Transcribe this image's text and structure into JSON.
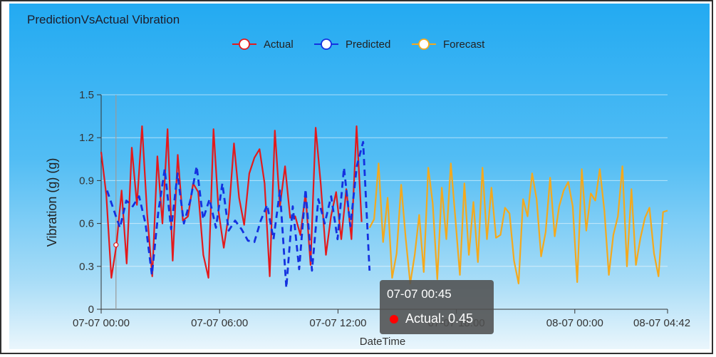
{
  "chart_data": {
    "type": "line",
    "title": "PredictionVsActual Vibration",
    "xlabel": "DateTime",
    "ylabel": "Vibration (g) (g)",
    "ylim": [
      0,
      1.5
    ],
    "y_ticks": [
      "0",
      "0.3",
      "0.6",
      "0.9",
      "1.2",
      "1.5"
    ],
    "x_tick_labels": [
      "07-07 00:00",
      "07-07 06:00",
      "07-07 12:00",
      "07-07 18:00",
      "08-07 00:00",
      "08-07 04:42"
    ],
    "x_range_hours": [
      0,
      28.7
    ],
    "grid": true,
    "legend_position": "top",
    "series": [
      {
        "name": "Actual",
        "color": "#e31a1c",
        "marker": "circle",
        "style": "solid",
        "values": [
          1.1,
          0.8,
          0.22,
          0.45,
          0.83,
          0.32,
          1.13,
          0.73,
          1.28,
          0.67,
          0.23,
          1.07,
          0.6,
          1.26,
          0.34,
          1.08,
          0.62,
          0.65,
          0.88,
          0.82,
          0.38,
          0.22,
          1.26,
          0.68,
          0.43,
          0.67,
          1.16,
          0.78,
          0.59,
          0.95,
          1.06,
          1.12,
          0.88,
          0.23,
          1.25,
          0.72,
          1.0,
          0.64,
          0.65,
          0.52,
          0.81,
          0.31,
          1.27,
          0.87,
          0.38,
          0.65,
          0.82,
          0.49,
          0.84,
          0.49,
          1.28,
          0.61
        ]
      },
      {
        "name": "Predicted",
        "color": "#1431e0",
        "marker": "circle",
        "style": "dashed",
        "values": [
          0.83,
          0.7,
          0.57,
          0.76,
          0.72,
          0.79,
          0.6,
          0.24,
          0.68,
          0.98,
          0.56,
          0.95,
          0.6,
          0.76,
          1.0,
          0.63,
          0.77,
          0.57,
          0.88,
          0.55,
          0.62,
          0.56,
          0.48,
          0.47,
          0.62,
          0.73,
          0.49,
          0.83,
          0.15,
          0.72,
          0.28,
          0.84,
          0.27,
          0.77,
          0.6,
          0.79,
          0.49,
          0.99,
          0.58,
          1.0,
          1.17,
          0.27
        ]
      },
      {
        "name": "Forecast",
        "color": "#f4a91c",
        "marker": "circle",
        "style": "solid",
        "values": [
          0.57,
          0.63,
          1.02,
          0.47,
          0.78,
          0.22,
          0.39,
          0.87,
          0.5,
          0.18,
          0.38,
          0.66,
          0.26,
          0.99,
          0.74,
          0.21,
          0.85,
          0.49,
          1.02,
          0.64,
          0.24,
          0.88,
          0.38,
          0.75,
          0.33,
          0.99,
          0.49,
          0.85,
          0.5,
          0.52,
          0.71,
          0.67,
          0.34,
          0.18,
          0.77,
          0.65,
          0.95,
          0.77,
          0.37,
          0.54,
          0.92,
          0.51,
          0.72,
          0.83,
          0.89,
          0.72,
          0.19,
          0.98,
          0.55,
          0.81,
          0.76,
          0.98,
          0.69,
          0.24,
          0.52,
          0.65,
          1.0,
          0.3,
          0.84,
          0.31,
          0.5,
          0.64,
          0.71,
          0.39,
          0.23,
          0.68,
          0.69
        ]
      }
    ],
    "tooltip": {
      "time": "07-07 00:45",
      "series": "Actual",
      "value": "0.45",
      "text": "Actual: 0.45"
    }
  }
}
